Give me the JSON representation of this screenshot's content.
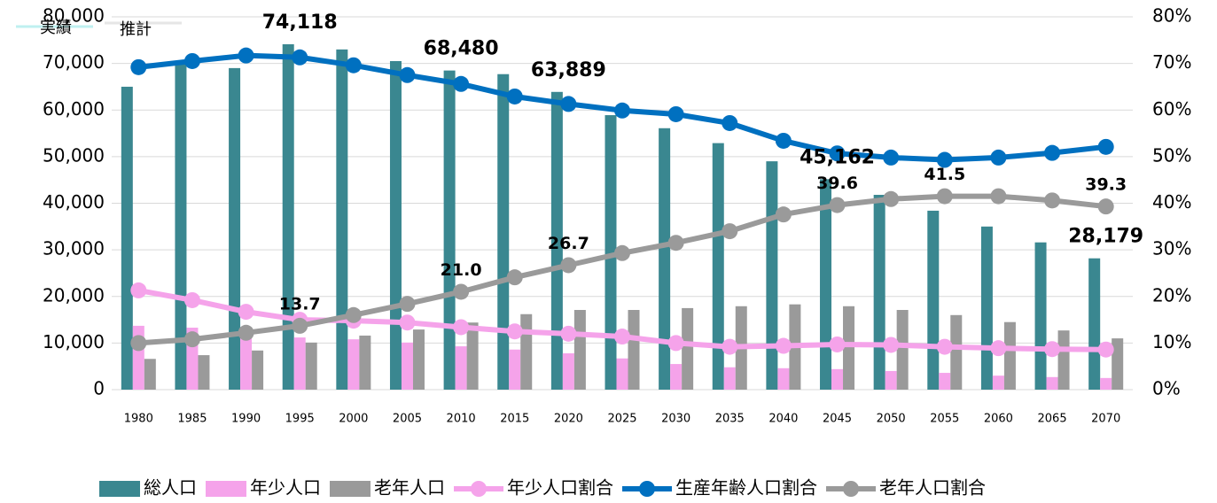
{
  "chart_data": {
    "type": "bar-line",
    "annotations": [
      "実績",
      "推計"
    ],
    "categories": [
      "1980",
      "1985",
      "1990",
      "1995",
      "2000",
      "2005",
      "2010",
      "2015",
      "2020",
      "2025",
      "2030",
      "2035",
      "2040",
      "2045",
      "2050",
      "2055",
      "2060",
      "2065",
      "2070"
    ],
    "series": [
      {
        "name": "総人口",
        "type": "bar",
        "color": "#3a8790",
        "values": [
          65000,
          70000,
          69000,
          74118,
          73000,
          70500,
          68480,
          67700,
          63889,
          58900,
          56100,
          52900,
          49000,
          45162,
          41800,
          38400,
          35000,
          31600,
          28179
        ],
        "value_labels": [
          null,
          null,
          null,
          "74,118",
          null,
          null,
          "68,480",
          null,
          "63,889",
          null,
          null,
          null,
          null,
          "45,162",
          null,
          null,
          null,
          null,
          "28,179"
        ]
      },
      {
        "name": "年少人口",
        "type": "bar",
        "color": "#f5a3ea",
        "values": [
          13700,
          13300,
          11500,
          11200,
          10800,
          10100,
          9300,
          8600,
          7800,
          6700,
          5500,
          4800,
          4600,
          4400,
          4000,
          3600,
          3000,
          2700,
          2500
        ]
      },
      {
        "name": "老年人口",
        "type": "bar",
        "color": "#9a9a9a",
        "values": [
          6600,
          7400,
          8400,
          10100,
          11600,
          12900,
          14400,
          16200,
          17100,
          17100,
          17500,
          17900,
          18300,
          17900,
          17100,
          16000,
          14500,
          12700,
          11000
        ]
      },
      {
        "name": "年少人口割合",
        "type": "line",
        "axis": "y2",
        "color": "#f5a3ea",
        "values": [
          21.3,
          19.2,
          16.7,
          15.0,
          14.8,
          14.4,
          13.4,
          12.5,
          12.0,
          11.4,
          10.0,
          9.2,
          9.4,
          9.7,
          9.6,
          9.2,
          8.9,
          8.7,
          8.6
        ]
      },
      {
        "name": "生産年齢人口割合",
        "type": "line",
        "axis": "y2",
        "color": "#0070c0",
        "values": [
          69.2,
          70.5,
          71.7,
          71.3,
          69.6,
          67.5,
          65.6,
          62.9,
          61.3,
          59.9,
          59.1,
          57.2,
          53.4,
          50.7,
          49.8,
          49.3,
          49.8,
          50.8,
          52.1
        ]
      },
      {
        "name": "老年人口割合",
        "type": "line",
        "axis": "y2",
        "color": "#9a9a9a",
        "values": [
          10.0,
          10.8,
          12.2,
          13.7,
          16.0,
          18.4,
          21.0,
          24.1,
          26.7,
          29.3,
          31.5,
          34.0,
          37.6,
          39.6,
          40.9,
          41.5,
          41.5,
          40.6,
          39.3
        ],
        "value_labels": [
          null,
          null,
          null,
          "13.7",
          null,
          null,
          "21.0",
          null,
          "26.7",
          null,
          null,
          null,
          null,
          "39.6",
          null,
          "41.5",
          null,
          null,
          "39.3"
        ]
      }
    ],
    "ylim": [
      0,
      80000
    ],
    "yticks": [
      {
        "value": 0,
        "label": "0"
      },
      {
        "value": 10000,
        "label": "10,000"
      },
      {
        "value": 20000,
        "label": "20,000"
      },
      {
        "value": 30000,
        "label": "30,000"
      },
      {
        "value": 40000,
        "label": "40,000"
      },
      {
        "value": 50000,
        "label": "50,000"
      },
      {
        "value": 60000,
        "label": "60,000"
      },
      {
        "value": 70000,
        "label": "70,000"
      },
      {
        "value": 80000,
        "label": "80,000"
      }
    ],
    "y2lim": [
      0,
      80
    ],
    "y2ticks": [
      {
        "value": 0,
        "label": "0%"
      },
      {
        "value": 10,
        "label": "10%"
      },
      {
        "value": 20,
        "label": "20%"
      },
      {
        "value": 30,
        "label": "30%"
      },
      {
        "value": 40,
        "label": "40%"
      },
      {
        "value": 50,
        "label": "50%"
      },
      {
        "value": 60,
        "label": "60%"
      },
      {
        "value": 70,
        "label": "70%"
      },
      {
        "value": 80,
        "label": "80%"
      }
    ],
    "grid": true,
    "legend": "bottom"
  }
}
